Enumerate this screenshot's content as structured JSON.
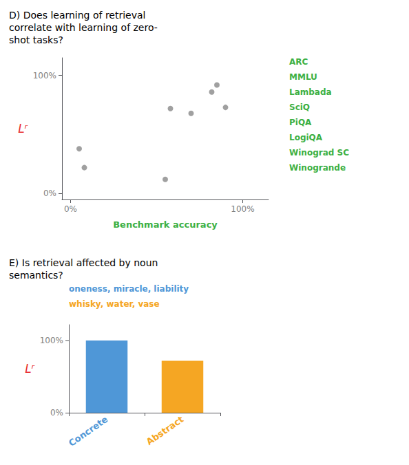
{
  "chart_data": [
    {
      "type": "scatter",
      "title": "D) Does learning of retrieval\ncorrelate with learning of zero-\nshot tasks?",
      "xlabel": "Benchmark accuracy",
      "ylabel": "Lʳ",
      "x": [
        0.05,
        0.08,
        0.55,
        0.58,
        0.7,
        0.82,
        0.85,
        0.9
      ],
      "values": [
        0.38,
        0.22,
        0.12,
        0.72,
        0.68,
        0.86,
        0.92,
        0.73
      ],
      "color": "#888888",
      "xlim": [
        -0.05,
        1.15
      ],
      "ylim": [
        -0.05,
        1.15
      ],
      "xticks": [
        {
          "value": 0,
          "label": "0%"
        },
        {
          "value": 1,
          "label": "100%"
        }
      ],
      "yticks": [
        {
          "value": 0,
          "label": "0%"
        },
        {
          "value": 1,
          "label": "100%"
        }
      ],
      "grid": false,
      "annotations": [
        {
          "text": "ARC",
          "color": "#3cb043"
        },
        {
          "text": "MMLU",
          "color": "#3cb043"
        },
        {
          "text": "Lambada",
          "color": "#3cb043"
        },
        {
          "text": "SciQ",
          "color": "#3cb043"
        },
        {
          "text": "PiQA",
          "color": "#3cb043"
        },
        {
          "text": "LogiQA",
          "color": "#3cb043"
        },
        {
          "text": "Winograd SC",
          "color": "#3cb043"
        },
        {
          "text": "Winogrande",
          "color": "#3cb043"
        }
      ]
    },
    {
      "type": "bar",
      "title": "E) Is retrieval affected by noun\nsemantics?",
      "ylabel": "Lʳ",
      "categories": [
        "Concrete",
        "Abstract"
      ],
      "values": [
        1.0,
        0.72
      ],
      "colors": [
        "#4f97d7",
        "#f5a623"
      ],
      "ylim": [
        0,
        1.22
      ],
      "yticks": [
        {
          "value": 0,
          "label": "0%"
        },
        {
          "value": 1,
          "label": "100%"
        }
      ],
      "grid": false,
      "annotations": [
        {
          "text": "oneness, miracle, liability",
          "color": "#4f97d7"
        },
        {
          "text": "whisky, water, vase",
          "color": "#f5a623"
        }
      ]
    }
  ]
}
